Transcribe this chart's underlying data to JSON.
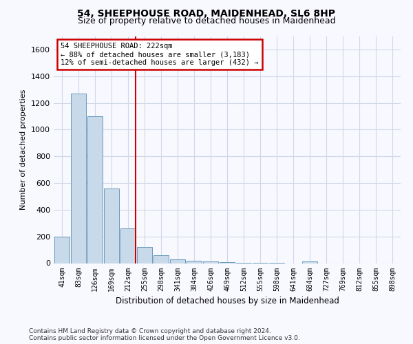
{
  "title": "54, SHEEPHOUSE ROAD, MAIDENHEAD, SL6 8HP",
  "subtitle": "Size of property relative to detached houses in Maidenhead",
  "xlabel": "Distribution of detached houses by size in Maidenhead",
  "ylabel": "Number of detached properties",
  "footnote1": "Contains HM Land Registry data © Crown copyright and database right 2024.",
  "footnote2": "Contains public sector information licensed under the Open Government Licence v3.0.",
  "categories": [
    "41sqm",
    "83sqm",
    "126sqm",
    "169sqm",
    "212sqm",
    "255sqm",
    "298sqm",
    "341sqm",
    "384sqm",
    "426sqm",
    "469sqm",
    "512sqm",
    "555sqm",
    "598sqm",
    "641sqm",
    "684sqm",
    "727sqm",
    "769sqm",
    "812sqm",
    "855sqm",
    "898sqm"
  ],
  "values": [
    200,
    1270,
    1100,
    560,
    260,
    120,
    60,
    30,
    20,
    15,
    8,
    5,
    3,
    2,
    0,
    15,
    0,
    0,
    0,
    0,
    0
  ],
  "bar_color": "#c8d9ea",
  "bar_edge_color": "#6699bb",
  "property_line_index": 4,
  "property_line_color": "#cc0000",
  "ylim": [
    0,
    1700
  ],
  "yticks": [
    0,
    200,
    400,
    600,
    800,
    1000,
    1200,
    1400,
    1600
  ],
  "annotation_text": "54 SHEEPHOUSE ROAD: 222sqm\n← 88% of detached houses are smaller (3,183)\n12% of semi-detached houses are larger (432) →",
  "annotation_box_color": "#ffffff",
  "annotation_box_edge": "#cc0000",
  "grid_color": "#d0d8e8",
  "background_color": "#f8f8ff",
  "title_fontsize": 10,
  "subtitle_fontsize": 9
}
